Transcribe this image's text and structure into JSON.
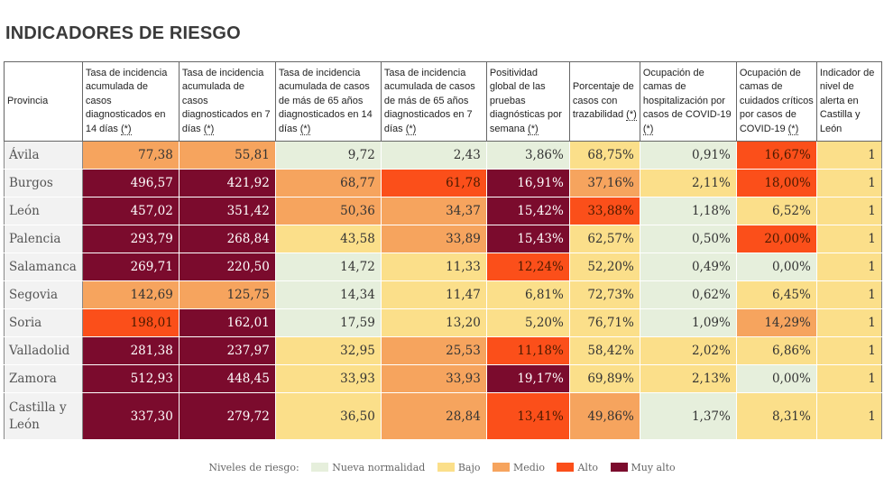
{
  "title": "INDICADORES DE RIESGO",
  "chart_data": {
    "type": "table",
    "title": "INDICADORES DE RIESGO",
    "columns": [
      {
        "label": "Provincia",
        "ref": ""
      },
      {
        "label": "Tasa de incidencia acumulada de casos diagnosticados en 14 días",
        "ref": "(*)"
      },
      {
        "label": "Tasa de incidencia acumulada de casos diagnosticados en 7 días",
        "ref": "(*)"
      },
      {
        "label": "Tasa de incidencia acumulada de casos de más de 65 años diagnosticados en 14 días",
        "ref": "(*)"
      },
      {
        "label": "Tasa de incidencia acumulada de casos de más de 65 años diagnosticados en 7 días",
        "ref": "(*)"
      },
      {
        "label": "Positividad global de las pruebas diagnósticas por semana",
        "ref": "(*)"
      },
      {
        "label": "Porcentaje de casos con trazabilidad",
        "ref": "(*)"
      },
      {
        "label": "Ocupación de camas de hospitalización por casos de COVID-19",
        "ref": "(*)"
      },
      {
        "label": "Ocupación de camas de cuidados críticos por casos de COVID-19",
        "ref": "(*)"
      },
      {
        "label": "Indicador de nivel de alerta en Castilla y León",
        "ref": ""
      }
    ],
    "rows": [
      {
        "provincia": "Ávila",
        "values": [
          "77,38",
          "55,81",
          "9,72",
          "2,43",
          "3,86%",
          "68,75%",
          "0,91%",
          "16,67%",
          "1"
        ],
        "levels": [
          3,
          3,
          1,
          1,
          1,
          2,
          1,
          4,
          2
        ]
      },
      {
        "provincia": "Burgos",
        "values": [
          "496,57",
          "421,92",
          "68,77",
          "61,78",
          "16,91%",
          "37,16%",
          "2,11%",
          "18,00%",
          "1"
        ],
        "levels": [
          5,
          5,
          3,
          4,
          5,
          3,
          2,
          4,
          2
        ]
      },
      {
        "provincia": "León",
        "values": [
          "457,02",
          "351,42",
          "50,36",
          "34,37",
          "15,42%",
          "33,88%",
          "1,18%",
          "6,52%",
          "1"
        ],
        "levels": [
          5,
          5,
          3,
          3,
          5,
          4,
          1,
          2,
          2
        ]
      },
      {
        "provincia": "Palencia",
        "values": [
          "293,79",
          "268,84",
          "43,58",
          "33,89",
          "15,43%",
          "62,57%",
          "0,50%",
          "20,00%",
          "1"
        ],
        "levels": [
          5,
          5,
          2,
          3,
          5,
          2,
          1,
          4,
          2
        ]
      },
      {
        "provincia": "Salamanca",
        "values": [
          "269,71",
          "220,50",
          "14,72",
          "11,33",
          "12,24%",
          "52,20%",
          "0,49%",
          "0,00%",
          "1"
        ],
        "levels": [
          5,
          5,
          1,
          2,
          4,
          2,
          1,
          1,
          2
        ]
      },
      {
        "provincia": "Segovia",
        "values": [
          "142,69",
          "125,75",
          "14,34",
          "11,47",
          "6,81%",
          "72,73%",
          "0,62%",
          "6,45%",
          "1"
        ],
        "levels": [
          3,
          3,
          1,
          2,
          2,
          2,
          1,
          2,
          2
        ]
      },
      {
        "provincia": "Soria",
        "values": [
          "198,01",
          "162,01",
          "17,59",
          "13,20",
          "5,20%",
          "76,71%",
          "1,09%",
          "14,29%",
          "1"
        ],
        "levels": [
          4,
          5,
          1,
          2,
          2,
          2,
          1,
          3,
          2
        ]
      },
      {
        "provincia": "Valladolid",
        "values": [
          "281,38",
          "237,97",
          "32,95",
          "25,53",
          "11,18%",
          "58,42%",
          "2,02%",
          "6,86%",
          "1"
        ],
        "levels": [
          5,
          5,
          2,
          3,
          4,
          2,
          2,
          2,
          2
        ]
      },
      {
        "provincia": "Zamora",
        "values": [
          "512,93",
          "448,45",
          "33,93",
          "33,93",
          "19,17%",
          "69,89%",
          "2,13%",
          "0,00%",
          "1"
        ],
        "levels": [
          5,
          5,
          2,
          3,
          5,
          2,
          2,
          1,
          2
        ]
      },
      {
        "provincia": "Castilla y León",
        "values": [
          "337,30",
          "279,72",
          "36,50",
          "28,84",
          "13,41%",
          "49,86%",
          "1,37%",
          "8,31%",
          "1"
        ],
        "levels": [
          5,
          5,
          2,
          3,
          4,
          3,
          1,
          2,
          2
        ]
      }
    ],
    "legend": {
      "title": "Niveles de riesgo:",
      "items": [
        {
          "label": "Nueva normalidad",
          "color": "#e6efdc"
        },
        {
          "label": "Bajo",
          "color": "#fbdf8a"
        },
        {
          "label": "Medio",
          "color": "#f6a45e"
        },
        {
          "label": "Alto",
          "color": "#fb4f1a"
        },
        {
          "label": "Muy alto",
          "color": "#7b0b2d"
        }
      ]
    }
  }
}
